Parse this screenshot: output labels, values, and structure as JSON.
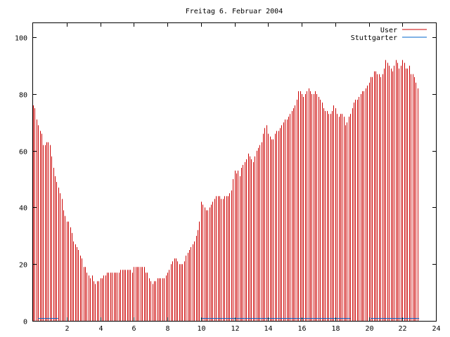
{
  "chart_data": {
    "type": "bar",
    "title": "Freitag 6. Februar 2004",
    "xlabel": "",
    "ylabel": "",
    "xlim": [
      0,
      24
    ],
    "ylim": [
      0,
      105
    ],
    "x_ticks": [
      2,
      4,
      6,
      8,
      10,
      12,
      14,
      16,
      18,
      20,
      22,
      24
    ],
    "y_ticks": [
      0,
      20,
      40,
      60,
      80,
      100
    ],
    "grid": false,
    "legend_position": "top-right",
    "bin_width_hours": 0.1,
    "series": [
      {
        "name": "User",
        "color": "#cc0000",
        "values": [
          76,
          75,
          71,
          69,
          67,
          66,
          62,
          62,
          63,
          63,
          62,
          58,
          54,
          51,
          49,
          47,
          45,
          43,
          39,
          37,
          35,
          35,
          33,
          31,
          28,
          27,
          26,
          25,
          23,
          22,
          19,
          19,
          17,
          16,
          15,
          16,
          14,
          13,
          14,
          14,
          15,
          15,
          16,
          16,
          17,
          17,
          17,
          17,
          17,
          17,
          17,
          17,
          18,
          18,
          18,
          18,
          18,
          18,
          18,
          17,
          19,
          19,
          19,
          19,
          19,
          19,
          19,
          17,
          17,
          15,
          14,
          13,
          14,
          14,
          15,
          15,
          15,
          15,
          15,
          16,
          17,
          18,
          20,
          21,
          22,
          22,
          21,
          20,
          20,
          20,
          21,
          23,
          24,
          25,
          26,
          27,
          28,
          30,
          32,
          35,
          42,
          41,
          40,
          39,
          39,
          40,
          41,
          42,
          43,
          44,
          44,
          44,
          43,
          43,
          44,
          44,
          44,
          45,
          46,
          50,
          53,
          52,
          53,
          51,
          54,
          55,
          56,
          57,
          59,
          58,
          57,
          56,
          58,
          60,
          61,
          62,
          63,
          66,
          68,
          69,
          66,
          65,
          64,
          64,
          66,
          67,
          67,
          68,
          69,
          70,
          71,
          71,
          72,
          73,
          74,
          75,
          76,
          78,
          81,
          81,
          80,
          79,
          80,
          81,
          82,
          81,
          80,
          80,
          81,
          80,
          79,
          78,
          77,
          75,
          74,
          74,
          73,
          73,
          74,
          76,
          75,
          73,
          72,
          73,
          73,
          72,
          69,
          70,
          72,
          73,
          75,
          77,
          78,
          78,
          79,
          80,
          81,
          81,
          82,
          83,
          84,
          86,
          86,
          88,
          88,
          87,
          87,
          86,
          87,
          89,
          92,
          91,
          90,
          89,
          88,
          90,
          92,
          91,
          89,
          90,
          92,
          91,
          89,
          89,
          90,
          87,
          87,
          86,
          84,
          82
        ]
      },
      {
        "name": "Stuttgarter",
        "color": "#0066cc",
        "values": [
          0,
          0,
          0,
          1,
          1,
          1,
          1,
          1,
          1,
          1,
          1,
          1,
          1,
          1,
          1,
          0,
          0,
          0,
          0,
          0,
          0,
          0,
          0,
          0,
          0,
          0,
          0,
          0,
          0,
          0,
          0,
          0,
          0,
          0,
          0,
          0,
          0,
          0,
          0,
          0,
          0,
          0,
          0,
          0,
          0,
          0,
          0,
          0,
          0,
          0,
          0,
          0,
          0,
          0,
          0,
          0,
          0,
          0,
          0,
          0,
          0,
          0,
          0,
          0,
          0,
          0,
          0,
          0,
          0,
          0,
          0,
          0,
          0,
          0,
          0,
          0,
          0,
          0,
          0,
          0,
          0,
          0,
          0,
          0,
          0,
          0,
          0,
          0,
          0,
          0,
          0,
          0,
          0,
          0,
          0,
          0,
          0,
          0,
          0,
          0,
          1,
          1,
          1,
          1,
          1,
          1,
          1,
          1,
          1,
          1,
          1,
          1,
          1,
          1,
          1,
          1,
          1,
          1,
          1,
          1,
          1,
          1,
          1,
          1,
          1,
          1,
          1,
          1,
          1,
          1,
          1,
          1,
          1,
          1,
          1,
          1,
          1,
          1,
          1,
          1,
          1,
          1,
          1,
          1,
          1,
          1,
          1,
          1,
          1,
          1,
          1,
          1,
          1,
          1,
          1,
          1,
          1,
          1,
          1,
          1,
          1,
          1,
          1,
          1,
          1,
          1,
          1,
          1,
          1,
          1,
          1,
          1,
          1,
          1,
          1,
          1,
          1,
          1,
          1,
          1,
          1,
          1,
          1,
          1,
          1,
          1,
          1,
          1,
          1,
          0,
          0,
          0,
          0,
          0,
          0,
          0,
          0,
          0,
          0,
          0,
          0,
          1,
          1,
          1,
          1,
          1,
          1,
          1,
          1,
          1,
          1,
          1,
          1,
          1,
          1,
          1,
          1,
          1,
          1,
          1,
          1,
          1,
          1,
          1,
          1,
          1,
          1,
          1,
          1,
          1
        ]
      }
    ]
  }
}
